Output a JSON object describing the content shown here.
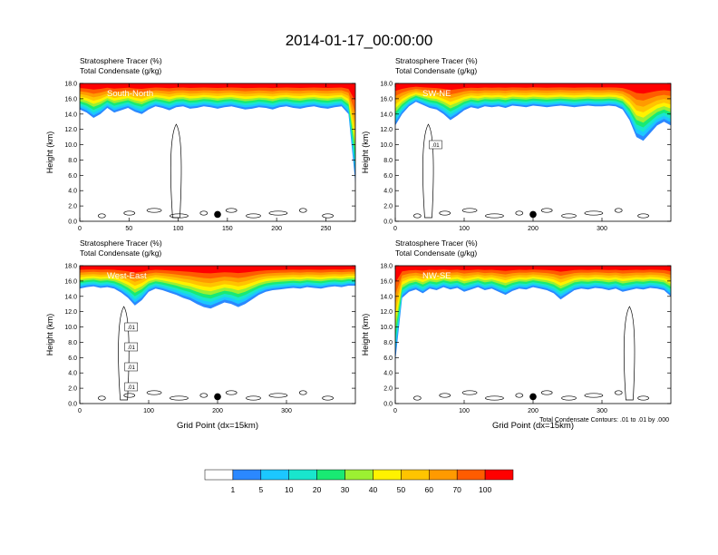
{
  "figure": {
    "title": "2014-01-17_00:00:00",
    "footnote": "Total Condensate Contours: .01 to .01 by .000"
  },
  "colorbar": {
    "labels": [
      "1",
      "5",
      "10",
      "20",
      "30",
      "40",
      "50",
      "60",
      "70",
      "100"
    ],
    "colors": [
      "#ffffff",
      "#2b88ff",
      "#1cc7ff",
      "#19e6cd",
      "#19ea73",
      "#9cf032",
      "#fff200",
      "#ffc400",
      "#ff9a00",
      "#ff5c00",
      "#ff0000"
    ]
  },
  "chart_data": [
    {
      "type": "contour",
      "label": "South-North",
      "line1": "Stratosphere Tracer   (%)",
      "line2": "Total Condensate   (g/kg)",
      "ylabel": "Height (km)",
      "xlabel": "",
      "xlim": [
        0,
        280
      ],
      "xticks": [
        0,
        50,
        100,
        150,
        200,
        250
      ],
      "ylim": [
        0,
        18
      ],
      "yticks": [
        "0.0",
        "2.0",
        "4.0",
        "6.0",
        "8.0",
        "10.0",
        "12.0",
        "14.0",
        "16.0",
        "18.0"
      ],
      "marker_x": 140,
      "contour_labels": [],
      "tracer_base_km": [
        14.6,
        14.2,
        13.5,
        14.0,
        14.8,
        14.2,
        14.5,
        14.8,
        14.3,
        14.0,
        14.6,
        15.0,
        14.8,
        14.5,
        14.9,
        15.0,
        14.7,
        14.8,
        15.0,
        14.9,
        14.7,
        14.9,
        15.0,
        14.8,
        14.6,
        14.7,
        14.9,
        14.8,
        14.6,
        14.9,
        15.0,
        14.8,
        14.7,
        14.9,
        15.0,
        14.8,
        14.7,
        14.9,
        15.0,
        14.0,
        5.0
      ]
    },
    {
      "type": "contour",
      "label": "SW-NE",
      "line1": "Stratosphere Tracer   (%)",
      "line2": "Total Condensate   (g/kg)",
      "ylabel": "Height (km)",
      "xlabel": "",
      "xlim": [
        0,
        400
      ],
      "xticks": [
        0,
        100,
        200,
        300
      ],
      "ylim": [
        0,
        18
      ],
      "yticks": [
        "0.0",
        "2.0",
        "4.0",
        "6.0",
        "8.0",
        "10.0",
        "12.0",
        "14.0",
        "16.0",
        "18.0"
      ],
      "marker_x": 200,
      "contour_labels": [
        ".01"
      ],
      "tracer_base_km": [
        12.5,
        14.0,
        15.0,
        15.6,
        15.2,
        14.8,
        14.6,
        14.0,
        13.2,
        13.8,
        14.5,
        14.9,
        14.7,
        15.0,
        14.9,
        15.0,
        14.8,
        15.1,
        15.0,
        14.9,
        15.1,
        15.0,
        14.9,
        15.0,
        15.1,
        15.0,
        14.9,
        15.0,
        15.1,
        15.0,
        15.0,
        15.1,
        15.0,
        14.6,
        13.2,
        11.0,
        10.5,
        11.5,
        12.5,
        13.0,
        12.5
      ]
    },
    {
      "type": "contour",
      "label": "West-East",
      "line1": "Stratosphere Tracer   (%)",
      "line2": "Total Condensate   (g/kg)",
      "ylabel": "Height (km)",
      "xlabel": "Grid Point (dx=15km)",
      "xlim": [
        0,
        400
      ],
      "xticks": [
        0,
        100,
        200,
        300
      ],
      "ylim": [
        0,
        18
      ],
      "yticks": [
        "0.0",
        "2.0",
        "4.0",
        "6.0",
        "8.0",
        "10.0",
        "12.0",
        "14.0",
        "16.0",
        "18.0"
      ],
      "marker_x": 200,
      "contour_labels": [
        ".01",
        ".01",
        ".01",
        ".01"
      ],
      "tracer_base_km": [
        15.0,
        15.2,
        15.3,
        15.1,
        15.2,
        15.0,
        14.5,
        13.8,
        12.8,
        13.5,
        14.6,
        15.0,
        14.8,
        14.5,
        14.2,
        13.8,
        13.5,
        13.0,
        12.6,
        12.4,
        12.8,
        13.2,
        13.0,
        12.6,
        13.0,
        13.6,
        14.2,
        14.6,
        14.8,
        14.9,
        15.0,
        15.1,
        15.0,
        15.2,
        15.1,
        15.0,
        15.2,
        15.3,
        15.2,
        15.4,
        15.4
      ]
    },
    {
      "type": "contour",
      "label": "NW-SE",
      "line1": "Stratosphere Tracer   (%)",
      "line2": "Total Condensate   (g/kg)",
      "ylabel": "Height (km)",
      "xlabel": "Grid Point (dx=15km)",
      "xlim": [
        0,
        400
      ],
      "xticks": [
        0,
        100,
        200,
        300
      ],
      "ylim": [
        0,
        18
      ],
      "yticks": [
        "0.0",
        "2.0",
        "4.0",
        "6.0",
        "8.0",
        "10.0",
        "12.0",
        "14.0",
        "16.0",
        "18.0"
      ],
      "marker_x": 200,
      "contour_labels": [],
      "tracer_base_km": [
        5.5,
        13.8,
        14.6,
        14.9,
        14.4,
        15.0,
        14.8,
        15.2,
        14.9,
        15.1,
        14.6,
        14.9,
        15.2,
        14.8,
        15.0,
        14.6,
        14.2,
        14.7,
        15.0,
        14.9,
        15.2,
        15.0,
        14.8,
        14.4,
        13.6,
        14.2,
        14.8,
        15.0,
        14.9,
        15.1,
        15.0,
        14.8,
        15.0,
        14.6,
        14.8,
        15.0,
        14.9,
        15.1,
        15.0,
        14.8,
        14.0
      ]
    }
  ]
}
